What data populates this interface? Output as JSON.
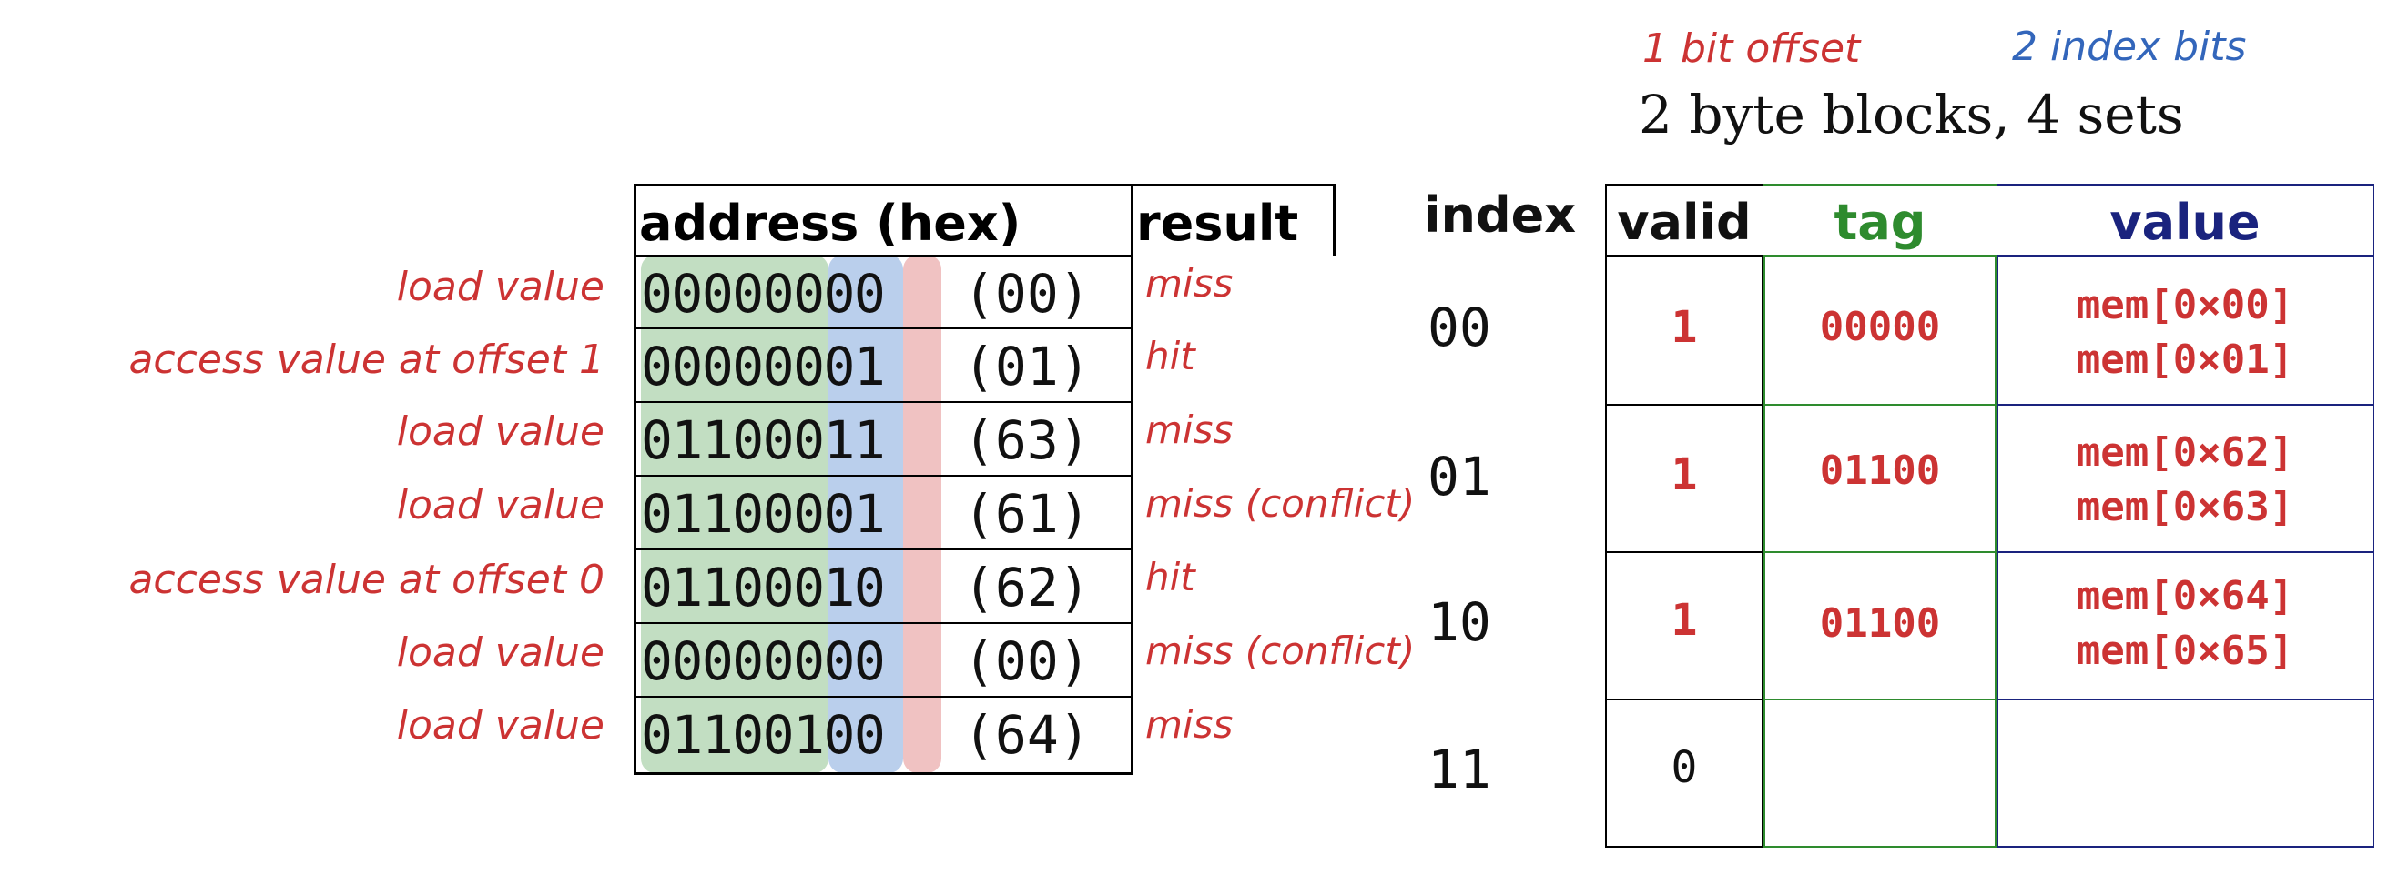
{
  "annotations": {
    "offset_note": "1 bit offset",
    "index_note": "2 index bits",
    "config": "2 byte blocks, 4 sets"
  },
  "address_table": {
    "header_address": "address (hex)",
    "header_result": "result",
    "rows": [
      {
        "action": "load value",
        "bits": "00000000",
        "hex": "(00)",
        "result": "miss"
      },
      {
        "action": "access value at offset 1",
        "bits": "00000001",
        "hex": "(01)",
        "result": "hit"
      },
      {
        "action": "load value",
        "bits": "01100011",
        "hex": "(63)",
        "result": "miss"
      },
      {
        "action": "load value",
        "bits": "01100001",
        "hex": "(61)",
        "result": "miss (conflict)"
      },
      {
        "action": "access value at offset 0",
        "bits": "01100010",
        "hex": "(62)",
        "result": "hit"
      },
      {
        "action": "load value",
        "bits": "00000000",
        "hex": "(00)",
        "result": "miss (conflict)"
      },
      {
        "action": "load value",
        "bits": "01100100",
        "hex": "(64)",
        "result": "miss"
      }
    ]
  },
  "cache_table": {
    "header_index": "index",
    "header_valid": "valid",
    "header_tag": "tag",
    "header_value": "value",
    "sets": [
      {
        "index": "00",
        "valid": "1",
        "tag": "00000",
        "value_line1": "mem[0×00]",
        "value_line2": "mem[0×01]"
      },
      {
        "index": "01",
        "valid": "1",
        "tag": "01100",
        "value_line1": "mem[0×62]",
        "value_line2": "mem[0×63]"
      },
      {
        "index": "10",
        "valid": "1",
        "tag": "01100",
        "value_line1": "mem[0×64]",
        "value_line2": "mem[0×65]"
      },
      {
        "index": "11",
        "valid": "0",
        "tag": "",
        "value_line1": "",
        "value_line2": ""
      }
    ]
  },
  "colors": {
    "tag_band": "#50a050",
    "index_band": "#5a8cd2",
    "offset_band": "#dc6e6e",
    "annotation_red": "#cc3333",
    "annotation_blue": "#3366bb",
    "tag_header": "#2e8b2e",
    "value_header": "#1a237e"
  }
}
